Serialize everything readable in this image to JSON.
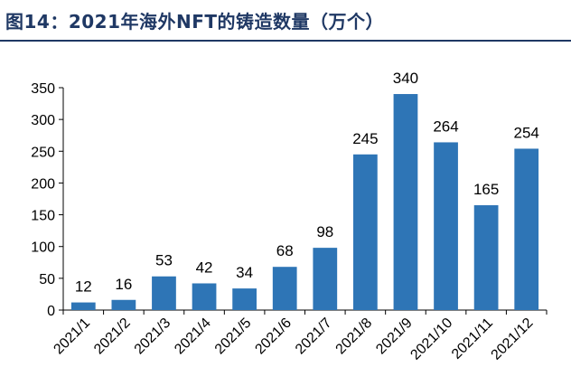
{
  "figure": {
    "title": "图14：2021年海外NFT的铸造数量（万个）"
  },
  "colors": {
    "bar": "#2e75b6",
    "axis": "#000000",
    "title": "#1f3864"
  },
  "chart_data": {
    "type": "bar",
    "title": "图14：2021年海外NFT的铸造数量（万个）",
    "categories": [
      "2021/1",
      "2021/2",
      "2021/3",
      "2021/4",
      "2021/5",
      "2021/6",
      "2021/7",
      "2021/8",
      "2021/9",
      "2021/10",
      "2021/11",
      "2021/12"
    ],
    "values": [
      12,
      16,
      53,
      42,
      34,
      68,
      98,
      245,
      340,
      264,
      165,
      254
    ],
    "data_labels": [
      "12",
      "16",
      "53",
      "42",
      "34",
      "68",
      "98",
      "245",
      "340",
      "264",
      "165",
      "254"
    ],
    "xlabel": "",
    "ylabel": "",
    "ylim": [
      0,
      350
    ],
    "yticks": [
      0,
      50,
      100,
      150,
      200,
      250,
      300,
      350
    ],
    "grid": false,
    "legend": "none"
  }
}
